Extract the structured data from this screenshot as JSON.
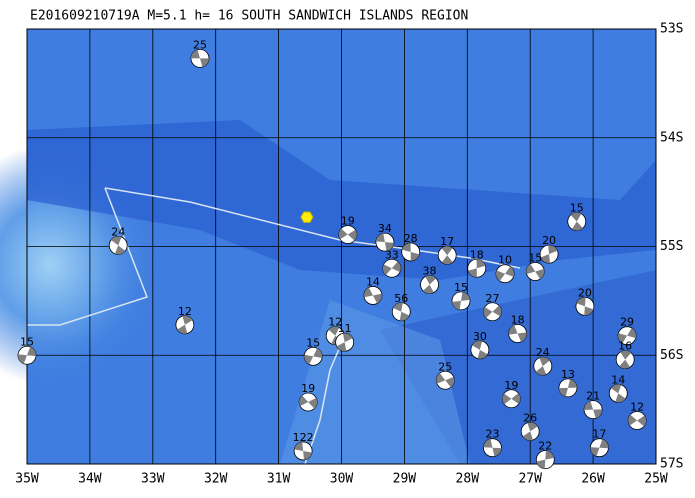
{
  "map": {
    "title": "E201609210719A M=5.1 h= 16 SOUTH SANDWICH ISLANDS REGION",
    "lon_range": [
      -35,
      -25
    ],
    "lat_range": [
      -53,
      -57
    ],
    "lon_ticks": [
      {
        "value": -35,
        "label": "35W"
      },
      {
        "value": -34,
        "label": "34W"
      },
      {
        "value": -33,
        "label": "33W"
      },
      {
        "value": -32,
        "label": "32W"
      },
      {
        "value": -31,
        "label": "31W"
      },
      {
        "value": -30,
        "label": "30W"
      },
      {
        "value": -29,
        "label": "29W"
      },
      {
        "value": -28,
        "label": "28W"
      },
      {
        "value": -27,
        "label": "27W"
      },
      {
        "value": -26,
        "label": "26W"
      },
      {
        "value": -25,
        "label": "25W"
      }
    ],
    "lat_ticks": [
      {
        "value": -53,
        "label": "53S"
      },
      {
        "value": -54,
        "label": "54S"
      },
      {
        "value": -55,
        "label": "55S"
      },
      {
        "value": -56,
        "label": "56S"
      },
      {
        "value": -57,
        "label": "57S"
      }
    ],
    "epicenter": {
      "lon": -30.55,
      "lat": -54.73
    },
    "events": [
      {
        "lon": -32.25,
        "lat": -53.27,
        "depth": 25
      },
      {
        "lon": -33.55,
        "lat": -54.99,
        "depth": 24
      },
      {
        "lon": -32.49,
        "lat": -55.72,
        "depth": 12
      },
      {
        "lon": -35.0,
        "lat": -56.0,
        "depth": 15
      },
      {
        "lon": -29.9,
        "lat": -54.89,
        "depth": 19
      },
      {
        "lon": -29.31,
        "lat": -54.96,
        "depth": 34
      },
      {
        "lon": -30.1,
        "lat": -55.82,
        "depth": 12
      },
      {
        "lon": -29.95,
        "lat": -55.88,
        "depth": 11
      },
      {
        "lon": -30.45,
        "lat": -56.01,
        "depth": 15
      },
      {
        "lon": -30.53,
        "lat": -56.43,
        "depth": 19
      },
      {
        "lon": -30.61,
        "lat": -56.88,
        "depth": 122
      },
      {
        "lon": -26.26,
        "lat": -54.77,
        "depth": 15
      },
      {
        "lon": -26.7,
        "lat": -55.07,
        "depth": 20
      },
      {
        "lon": -25.46,
        "lat": -55.82,
        "depth": 29
      },
      {
        "lon": -28.35,
        "lat": -56.23,
        "depth": 25
      },
      {
        "lon": -28.9,
        "lat": -55.05,
        "depth": 28
      },
      {
        "lon": -28.32,
        "lat": -55.08,
        "depth": 17
      },
      {
        "lon": -27.85,
        "lat": -55.2,
        "depth": 18
      },
      {
        "lon": -27.4,
        "lat": -55.25,
        "depth": 10
      },
      {
        "lon": -26.92,
        "lat": -55.23,
        "depth": 15
      },
      {
        "lon": -26.13,
        "lat": -55.55,
        "depth": 20
      },
      {
        "lon": -25.49,
        "lat": -56.04,
        "depth": 16
      },
      {
        "lon": -26.76,
        "lat": -56.96,
        "depth": 22
      },
      {
        "lon": -29.2,
        "lat": -55.2,
        "depth": 33
      },
      {
        "lon": -29.5,
        "lat": -55.45,
        "depth": 14
      },
      {
        "lon": -29.05,
        "lat": -55.6,
        "depth": 56
      },
      {
        "lon": -28.6,
        "lat": -55.35,
        "depth": 38
      },
      {
        "lon": -28.1,
        "lat": -55.5,
        "depth": 15
      },
      {
        "lon": -27.6,
        "lat": -55.6,
        "depth": 27
      },
      {
        "lon": -27.2,
        "lat": -55.8,
        "depth": 18
      },
      {
        "lon": -27.8,
        "lat": -55.95,
        "depth": 30
      },
      {
        "lon": -26.8,
        "lat": -56.1,
        "depth": 24
      },
      {
        "lon": -26.4,
        "lat": -56.3,
        "depth": 13
      },
      {
        "lon": -27.3,
        "lat": -56.4,
        "depth": 19
      },
      {
        "lon": -26.0,
        "lat": -56.5,
        "depth": 21
      },
      {
        "lon": -25.6,
        "lat": -56.35,
        "depth": 14
      },
      {
        "lon": -27.0,
        "lat": -56.7,
        "depth": 26
      },
      {
        "lon": -25.9,
        "lat": -56.85,
        "depth": 17
      },
      {
        "lon": -25.3,
        "lat": -56.6,
        "depth": 12
      },
      {
        "lon": -27.6,
        "lat": -56.85,
        "depth": 23
      }
    ]
  }
}
